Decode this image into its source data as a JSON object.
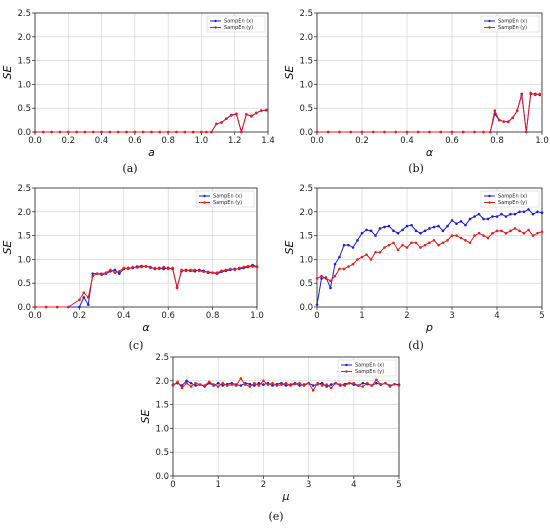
{
  "chart_data": [
    {
      "panel": "(a)",
      "type": "line",
      "xlabel": "a",
      "ylabel": "SE",
      "xlim": [
        0,
        1.4
      ],
      "ylim": [
        0,
        2.5
      ],
      "xticks": [
        "0.0",
        "0.2",
        "0.4",
        "0.6",
        "0.8",
        "1.0",
        "1.2",
        "1.4"
      ],
      "yticks": [
        "0.0",
        "0.5",
        "1.0",
        "1.5",
        "2.0",
        "2.5"
      ],
      "grid": true,
      "legend": "top-right",
      "series": [
        {
          "name": "SampEn (x)",
          "color": "#1f1fd6",
          "x": [
            0,
            0.05,
            0.1,
            0.15,
            0.2,
            0.25,
            0.3,
            0.35,
            0.4,
            0.45,
            0.5,
            0.55,
            0.6,
            0.65,
            0.7,
            0.75,
            0.8,
            0.85,
            0.9,
            0.95,
            1.0,
            1.03,
            1.06,
            1.09,
            1.12,
            1.15,
            1.18,
            1.21,
            1.24,
            1.27,
            1.3,
            1.33,
            1.36,
            1.39
          ],
          "y": [
            0,
            0,
            0,
            0,
            0,
            0,
            0,
            0,
            0,
            0,
            0,
            0,
            0,
            0,
            0,
            0,
            0,
            0,
            0,
            0,
            0,
            0,
            0,
            0.17,
            0.2,
            0.28,
            0.35,
            0.38,
            0.0,
            0.37,
            0.33,
            0.4,
            0.45,
            0.46
          ]
        },
        {
          "name": "SampEn (y)",
          "color": "#e82020",
          "x": [
            0,
            0.05,
            0.1,
            0.15,
            0.2,
            0.25,
            0.3,
            0.35,
            0.4,
            0.45,
            0.5,
            0.55,
            0.6,
            0.65,
            0.7,
            0.75,
            0.8,
            0.85,
            0.9,
            0.95,
            1.0,
            1.03,
            1.06,
            1.09,
            1.12,
            1.15,
            1.18,
            1.21,
            1.24,
            1.27,
            1.3,
            1.33,
            1.36,
            1.39
          ],
          "y": [
            0,
            0,
            0,
            0,
            0,
            0,
            0,
            0,
            0,
            0,
            0,
            0,
            0,
            0,
            0,
            0,
            0,
            0,
            0,
            0,
            0,
            0,
            0,
            0.17,
            0.2,
            0.28,
            0.36,
            0.38,
            0.0,
            0.37,
            0.34,
            0.4,
            0.45,
            0.46
          ]
        }
      ]
    },
    {
      "panel": "(b)",
      "type": "line",
      "xlabel": "α",
      "ylabel": "SE",
      "xlim": [
        0,
        1.0
      ],
      "ylim": [
        0,
        2.5
      ],
      "xticks": [
        "0.0",
        "0.2",
        "0.4",
        "0.6",
        "0.8",
        "1.0"
      ],
      "yticks": [
        "0.0",
        "0.5",
        "1.0",
        "1.5",
        "2.0",
        "2.5"
      ],
      "grid": true,
      "legend": "top-right",
      "series": [
        {
          "name": "SampEn (x)",
          "color": "#1f1fd6",
          "x": [
            0,
            0.05,
            0.1,
            0.15,
            0.2,
            0.25,
            0.3,
            0.35,
            0.4,
            0.45,
            0.5,
            0.55,
            0.6,
            0.65,
            0.7,
            0.74,
            0.77,
            0.79,
            0.81,
            0.83,
            0.85,
            0.87,
            0.89,
            0.91,
            0.93,
            0.95,
            0.97,
            0.99
          ],
          "y": [
            0,
            0,
            0,
            0,
            0,
            0,
            0,
            0,
            0,
            0,
            0,
            0,
            0,
            0,
            0,
            0,
            0,
            0.38,
            0.25,
            0.22,
            0.21,
            0.3,
            0.45,
            0.8,
            0.0,
            0.8,
            0.8,
            0.78
          ]
        },
        {
          "name": "SampEn (y)",
          "color": "#e82020",
          "x": [
            0,
            0.05,
            0.1,
            0.15,
            0.2,
            0.25,
            0.3,
            0.35,
            0.4,
            0.45,
            0.5,
            0.55,
            0.6,
            0.65,
            0.7,
            0.74,
            0.77,
            0.79,
            0.81,
            0.83,
            0.85,
            0.87,
            0.89,
            0.91,
            0.93,
            0.95,
            0.97,
            0.99
          ],
          "y": [
            0,
            0,
            0,
            0,
            0,
            0,
            0,
            0,
            0,
            0,
            0,
            0,
            0,
            0,
            0,
            0,
            0,
            0.45,
            0.25,
            0.22,
            0.22,
            0.3,
            0.45,
            0.78,
            0.0,
            0.82,
            0.78,
            0.8
          ]
        }
      ]
    },
    {
      "panel": "(c)",
      "type": "line",
      "xlabel": "α",
      "ylabel": "SE",
      "xlim": [
        0,
        1.0
      ],
      "ylim": [
        0,
        2.5
      ],
      "xticks": [
        "0.0",
        "0.2",
        "0.4",
        "0.6",
        "0.8",
        "1.0"
      ],
      "yticks": [
        "0.0",
        "0.5",
        "1.0",
        "1.5",
        "2.0",
        "2.5"
      ],
      "grid": true,
      "legend": "top-right",
      "series": [
        {
          "name": "SampEn (x)",
          "color": "#1f1fd6",
          "x": [
            0,
            0.05,
            0.1,
            0.15,
            0.2,
            0.22,
            0.24,
            0.26,
            0.28,
            0.3,
            0.32,
            0.34,
            0.36,
            0.38,
            0.4,
            0.42,
            0.44,
            0.46,
            0.48,
            0.5,
            0.52,
            0.54,
            0.56,
            0.58,
            0.6,
            0.62,
            0.64,
            0.66,
            0.68,
            0.7,
            0.72,
            0.74,
            0.76,
            0.78,
            0.8,
            0.82,
            0.84,
            0.86,
            0.88,
            0.9,
            0.92,
            0.94,
            0.96,
            0.98,
            1.0
          ],
          "y": [
            0,
            0,
            0,
            0,
            0,
            0.2,
            0.05,
            0.7,
            0.7,
            0.68,
            0.7,
            0.75,
            0.78,
            0.7,
            0.8,
            0.82,
            0.82,
            0.85,
            0.86,
            0.85,
            0.84,
            0.8,
            0.82,
            0.8,
            0.82,
            0.8,
            0.42,
            0.75,
            0.78,
            0.76,
            0.75,
            0.78,
            0.76,
            0.72,
            0.72,
            0.7,
            0.74,
            0.76,
            0.78,
            0.8,
            0.8,
            0.82,
            0.84,
            0.88,
            0.85
          ]
        },
        {
          "name": "SampEn (y)",
          "color": "#e82020",
          "x": [
            0,
            0.05,
            0.1,
            0.15,
            0.2,
            0.22,
            0.24,
            0.26,
            0.28,
            0.3,
            0.32,
            0.34,
            0.36,
            0.38,
            0.4,
            0.42,
            0.44,
            0.46,
            0.48,
            0.5,
            0.52,
            0.54,
            0.56,
            0.58,
            0.6,
            0.62,
            0.64,
            0.66,
            0.68,
            0.7,
            0.72,
            0.74,
            0.76,
            0.78,
            0.8,
            0.82,
            0.84,
            0.86,
            0.88,
            0.9,
            0.92,
            0.94,
            0.96,
            0.98,
            1.0
          ],
          "y": [
            0,
            0,
            0,
            0,
            0.15,
            0.3,
            0.2,
            0.65,
            0.7,
            0.7,
            0.72,
            0.78,
            0.72,
            0.75,
            0.82,
            0.8,
            0.84,
            0.83,
            0.84,
            0.86,
            0.82,
            0.82,
            0.8,
            0.84,
            0.8,
            0.82,
            0.4,
            0.78,
            0.76,
            0.78,
            0.78,
            0.76,
            0.74,
            0.74,
            0.72,
            0.72,
            0.76,
            0.78,
            0.8,
            0.78,
            0.82,
            0.84,
            0.86,
            0.85,
            0.84
          ]
        }
      ]
    },
    {
      "panel": "(d)",
      "type": "line",
      "xlabel": "p",
      "ylabel": "SE",
      "xlim": [
        0,
        5
      ],
      "ylim": [
        0,
        2.5
      ],
      "xticks": [
        "0",
        "1",
        "2",
        "3",
        "4",
        "5"
      ],
      "yticks": [
        "0.0",
        "0.5",
        "1.0",
        "1.5",
        "2.0",
        "2.5"
      ],
      "grid": true,
      "legend": "top-right",
      "series": [
        {
          "name": "SampEn (x)",
          "color": "#1f1fd6",
          "x": [
            0,
            0.1,
            0.2,
            0.3,
            0.4,
            0.5,
            0.6,
            0.7,
            0.8,
            0.9,
            1.0,
            1.1,
            1.2,
            1.3,
            1.4,
            1.5,
            1.6,
            1.7,
            1.8,
            1.9,
            2.0,
            2.1,
            2.2,
            2.3,
            2.4,
            2.5,
            2.6,
            2.7,
            2.8,
            2.9,
            3.0,
            3.1,
            3.2,
            3.3,
            3.4,
            3.5,
            3.6,
            3.7,
            3.8,
            3.9,
            4.0,
            4.1,
            4.2,
            4.3,
            4.4,
            4.5,
            4.6,
            4.7,
            4.8,
            4.9,
            5.0
          ],
          "y": [
            0.05,
            0.6,
            0.62,
            0.4,
            0.9,
            1.05,
            1.3,
            1.3,
            1.25,
            1.4,
            1.55,
            1.62,
            1.6,
            1.5,
            1.65,
            1.68,
            1.7,
            1.6,
            1.55,
            1.62,
            1.7,
            1.72,
            1.6,
            1.55,
            1.6,
            1.65,
            1.68,
            1.7,
            1.6,
            1.7,
            1.82,
            1.75,
            1.8,
            1.72,
            1.85,
            1.9,
            1.95,
            1.85,
            1.85,
            1.9,
            1.9,
            1.95,
            1.9,
            1.95,
            1.95,
            2.0,
            2.0,
            2.05,
            1.95,
            2.0,
            1.98
          ]
        },
        {
          "name": "SampEn (y)",
          "color": "#e82020",
          "x": [
            0,
            0.1,
            0.2,
            0.3,
            0.4,
            0.5,
            0.6,
            0.7,
            0.8,
            0.9,
            1.0,
            1.1,
            1.2,
            1.3,
            1.4,
            1.5,
            1.6,
            1.7,
            1.8,
            1.9,
            2.0,
            2.1,
            2.2,
            2.3,
            2.4,
            2.5,
            2.6,
            2.7,
            2.8,
            2.9,
            3.0,
            3.1,
            3.2,
            3.3,
            3.4,
            3.5,
            3.6,
            3.7,
            3.8,
            3.9,
            4.0,
            4.1,
            4.2,
            4.3,
            4.4,
            4.5,
            4.6,
            4.7,
            4.8,
            4.9,
            5.0
          ],
          "y": [
            0.6,
            0.65,
            0.6,
            0.55,
            0.65,
            0.8,
            0.8,
            0.85,
            0.9,
            1.0,
            1.05,
            1.1,
            1.0,
            1.15,
            1.15,
            1.25,
            1.3,
            1.35,
            1.2,
            1.3,
            1.25,
            1.35,
            1.35,
            1.25,
            1.3,
            1.35,
            1.4,
            1.3,
            1.35,
            1.4,
            1.5,
            1.5,
            1.45,
            1.4,
            1.35,
            1.5,
            1.55,
            1.5,
            1.45,
            1.55,
            1.6,
            1.6,
            1.55,
            1.6,
            1.65,
            1.6,
            1.55,
            1.62,
            1.5,
            1.55,
            1.58
          ]
        }
      ]
    },
    {
      "panel": "(e)",
      "type": "line",
      "xlabel": "μ",
      "ylabel": "SE",
      "xlim": [
        0,
        5
      ],
      "ylim": [
        0,
        2.5
      ],
      "xticks": [
        "0",
        "1",
        "2",
        "3",
        "4",
        "5"
      ],
      "yticks": [
        "0.0",
        "0.5",
        "1.0",
        "1.5",
        "2.0",
        "2.5"
      ],
      "grid": true,
      "legend": "top-right",
      "series": [
        {
          "name": "SampEn (x)",
          "color": "#1f1fd6",
          "x": [
            0,
            0.1,
            0.2,
            0.3,
            0.4,
            0.5,
            0.6,
            0.7,
            0.8,
            0.9,
            1.0,
            1.1,
            1.2,
            1.3,
            1.4,
            1.5,
            1.6,
            1.7,
            1.8,
            1.9,
            2.0,
            2.1,
            2.2,
            2.3,
            2.4,
            2.5,
            2.6,
            2.7,
            2.8,
            2.9,
            3.0,
            3.1,
            3.2,
            3.3,
            3.4,
            3.5,
            3.6,
            3.7,
            3.8,
            3.9,
            4.0,
            4.1,
            4.2,
            4.3,
            4.4,
            4.5,
            4.6,
            4.7,
            4.8,
            4.9,
            5.0
          ],
          "y": [
            1.92,
            1.95,
            1.9,
            2.0,
            1.95,
            1.9,
            1.92,
            1.88,
            1.95,
            1.9,
            1.95,
            1.9,
            1.93,
            1.95,
            1.92,
            1.9,
            1.95,
            1.93,
            1.9,
            1.95,
            1.92,
            1.95,
            1.9,
            1.93,
            1.95,
            1.9,
            1.92,
            1.95,
            1.9,
            1.92,
            1.95,
            1.9,
            1.93,
            1.95,
            1.88,
            1.92,
            1.95,
            1.9,
            1.93,
            1.95,
            1.92,
            1.9,
            1.95,
            1.93,
            1.9,
            1.95,
            1.92,
            1.95,
            1.9,
            1.93,
            1.92
          ]
        },
        {
          "name": "SampEn (y)",
          "color": "#e82020",
          "x": [
            0,
            0.1,
            0.2,
            0.3,
            0.4,
            0.5,
            0.6,
            0.7,
            0.8,
            0.9,
            1.0,
            1.1,
            1.2,
            1.3,
            1.4,
            1.5,
            1.6,
            1.7,
            1.8,
            1.9,
            2.0,
            2.1,
            2.2,
            2.3,
            2.4,
            2.5,
            2.6,
            2.7,
            2.8,
            2.9,
            3.0,
            3.1,
            3.2,
            3.3,
            3.4,
            3.5,
            3.6,
            3.7,
            3.8,
            3.9,
            4.0,
            4.1,
            4.2,
            4.3,
            4.4,
            4.5,
            4.6,
            4.7,
            4.8,
            4.9,
            5.0
          ],
          "y": [
            1.9,
            1.98,
            1.85,
            1.95,
            1.88,
            1.95,
            1.92,
            1.9,
            1.98,
            1.92,
            1.88,
            1.95,
            1.9,
            1.92,
            1.9,
            2.05,
            1.92,
            1.88,
            1.95,
            1.9,
            2.0,
            1.92,
            1.95,
            1.9,
            1.92,
            1.95,
            1.9,
            1.93,
            1.95,
            1.9,
            1.95,
            1.8,
            1.95,
            1.9,
            1.92,
            1.85,
            1.95,
            1.92,
            1.9,
            1.95,
            1.95,
            1.9,
            1.88,
            1.95,
            1.9,
            2.02,
            1.92,
            1.95,
            1.88,
            1.93,
            1.9
          ]
        }
      ]
    }
  ],
  "legend_labels": [
    "SampEn (x)",
    "SampEn (y)"
  ],
  "colors": {
    "blue": "#1f1fd6",
    "red": "#e82020",
    "grid": "#cfcfcf"
  }
}
